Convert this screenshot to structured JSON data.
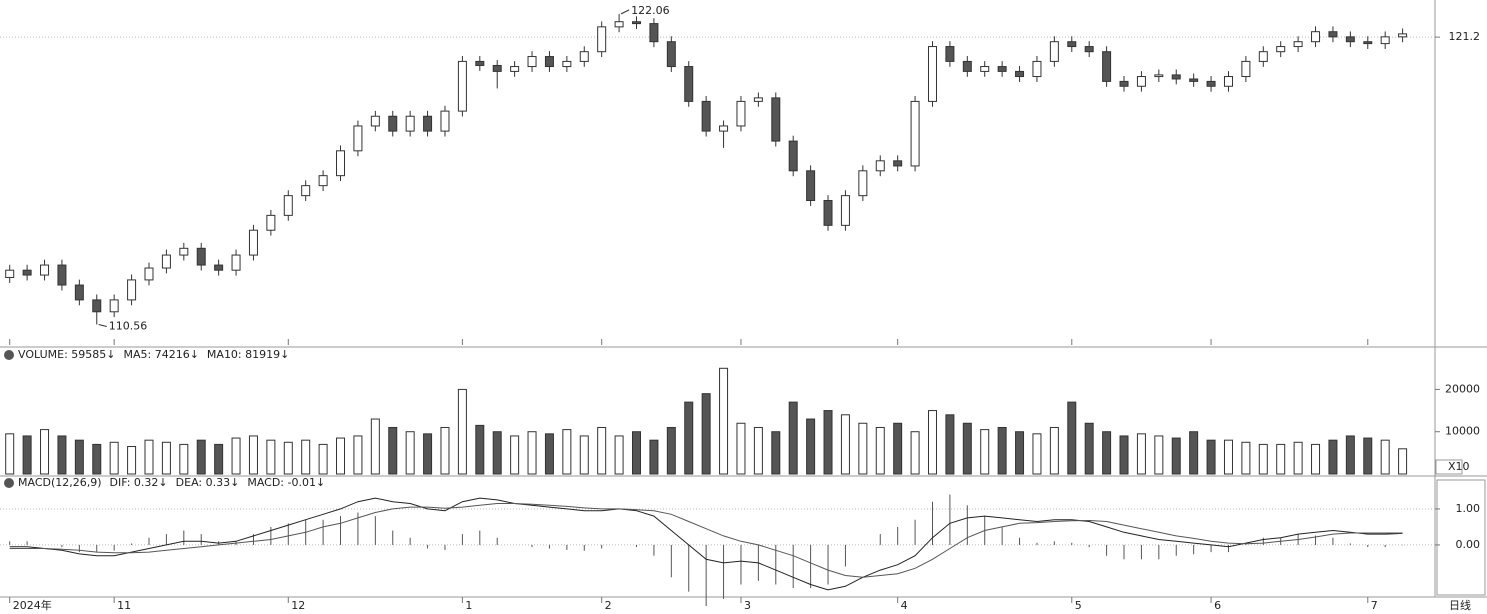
{
  "chart_data": [
    {
      "type": "candlestick",
      "xlim": [
        -0.5,
        81
      ],
      "ylim": [
        109.8,
        122.5
      ],
      "yticks": [
        121.2
      ],
      "grid": true,
      "xticks": [
        {
          "value": 0,
          "label": "2024年"
        },
        {
          "value": 6,
          "label": "11"
        },
        {
          "value": 16,
          "label": "12"
        },
        {
          "value": 26,
          "label": "1"
        },
        {
          "value": 34,
          "label": "2"
        },
        {
          "value": 42,
          "label": "3"
        },
        {
          "value": 51,
          "label": "4"
        },
        {
          "value": 61,
          "label": "5"
        },
        {
          "value": 69,
          "label": "6"
        },
        {
          "value": 78,
          "label": "7"
        }
      ],
      "period": "日线",
      "up_color": "#ffffff",
      "down_color": "#555555",
      "open": [
        112.3,
        112.57,
        112.39,
        112.76,
        112.02,
        111.47,
        111.03,
        111.47,
        112.21,
        112.65,
        113.13,
        113.38,
        112.76,
        112.57,
        113.13,
        114.05,
        114.6,
        115.33,
        115.7,
        116.07,
        116.99,
        117.91,
        118.27,
        117.72,
        118.27,
        117.72,
        118.46,
        120.3,
        120.15,
        119.93,
        120.11,
        120.48,
        120.11,
        120.3,
        120.66,
        121.58,
        121.77,
        121.7,
        121.03,
        120.11,
        118.82,
        117.72,
        117.91,
        118.82,
        118.95,
        117.35,
        116.25,
        115.15,
        114.23,
        115.33,
        116.25,
        116.62,
        116.43,
        118.82,
        120.85,
        120.3,
        119.93,
        120.11,
        119.93,
        119.74,
        120.3,
        121.03,
        120.85,
        120.66,
        119.56,
        119.38,
        119.74,
        119.8,
        119.65,
        119.56,
        119.38,
        119.74,
        120.3,
        120.66,
        120.85,
        121.03,
        121.4,
        121.21,
        121.03,
        120.96,
        121.21
      ],
      "high": [
        112.77,
        112.77,
        112.96,
        112.96,
        112.22,
        111.67,
        111.67,
        112.41,
        112.85,
        113.33,
        113.58,
        113.58,
        112.96,
        113.33,
        114.25,
        114.8,
        115.53,
        115.9,
        116.27,
        117.19,
        118.11,
        118.47,
        118.47,
        118.47,
        118.47,
        118.66,
        120.5,
        120.5,
        120.35,
        120.31,
        120.68,
        120.68,
        120.5,
        120.86,
        121.78,
        122.06,
        121.97,
        121.9,
        121.23,
        120.31,
        119.02,
        118.11,
        119.02,
        119.15,
        119.15,
        117.55,
        116.45,
        115.35,
        115.53,
        116.45,
        116.82,
        116.82,
        119.02,
        121.05,
        121.05,
        120.5,
        120.31,
        120.31,
        120.13,
        120.5,
        121.23,
        121.23,
        121.05,
        120.86,
        119.76,
        119.94,
        120.0,
        120.0,
        119.85,
        119.76,
        119.94,
        120.5,
        120.86,
        121.05,
        121.23,
        121.6,
        121.6,
        121.41,
        121.23,
        121.41,
        121.52
      ],
      "low": [
        112.1,
        112.19,
        112.19,
        111.82,
        111.27,
        110.56,
        110.83,
        111.27,
        112.01,
        112.45,
        112.93,
        112.56,
        112.37,
        112.37,
        112.93,
        113.85,
        114.4,
        115.13,
        115.5,
        115.87,
        116.79,
        117.71,
        117.52,
        117.52,
        117.52,
        117.52,
        118.26,
        119.95,
        119.3,
        119.73,
        119.91,
        119.91,
        119.91,
        120.1,
        120.46,
        121.38,
        121.5,
        120.83,
        119.91,
        118.62,
        117.52,
        117.1,
        117.71,
        118.62,
        117.15,
        116.05,
        114.95,
        114.03,
        114.03,
        115.13,
        116.05,
        116.23,
        116.23,
        118.62,
        120.1,
        119.73,
        119.73,
        119.73,
        119.54,
        119.54,
        120.1,
        120.65,
        120.46,
        119.36,
        119.18,
        119.18,
        119.54,
        119.45,
        119.36,
        119.18,
        119.18,
        119.54,
        120.1,
        120.46,
        120.65,
        120.83,
        121.01,
        120.83,
        120.76,
        120.76,
        121.01
      ],
      "close": [
        112.57,
        112.39,
        112.76,
        112.02,
        111.47,
        111.03,
        111.47,
        112.21,
        112.65,
        113.13,
        113.38,
        112.76,
        112.57,
        113.13,
        114.05,
        114.6,
        115.33,
        115.7,
        116.07,
        116.99,
        117.91,
        118.27,
        117.72,
        118.27,
        117.72,
        118.46,
        120.3,
        120.15,
        119.93,
        120.11,
        120.48,
        120.11,
        120.3,
        120.66,
        121.58,
        121.77,
        121.7,
        121.03,
        120.11,
        118.82,
        117.72,
        117.91,
        118.82,
        118.95,
        117.35,
        116.25,
        115.15,
        114.23,
        115.33,
        116.25,
        116.62,
        116.43,
        118.82,
        120.85,
        120.3,
        119.93,
        120.11,
        119.93,
        119.74,
        120.3,
        121.03,
        120.85,
        120.66,
        119.56,
        119.38,
        119.74,
        119.8,
        119.65,
        119.56,
        119.38,
        119.74,
        120.3,
        120.66,
        120.85,
        121.03,
        121.4,
        121.21,
        121.03,
        120.96,
        121.21,
        121.32
      ]
    },
    {
      "type": "bar",
      "xlim": [
        -0.5,
        81
      ],
      "ylim": [
        0,
        29800
      ],
      "yticks": [
        10000,
        20000
      ],
      "legend": [
        "VOLUME: 59585↓",
        "MA5: 74216↓",
        "MA10: 81919↓"
      ],
      "unit_label": "X10",
      "values": [
        9500,
        9000,
        10500,
        9000,
        8000,
        7000,
        7500,
        6500,
        8000,
        7500,
        7000,
        8000,
        7000,
        8500,
        9000,
        8000,
        7500,
        8000,
        7000,
        8500,
        9000,
        13000,
        11000,
        10000,
        9500,
        11000,
        20000,
        11500,
        10000,
        9000,
        10000,
        9500,
        10500,
        9000,
        11000,
        9000,
        10000,
        8000,
        11000,
        17000,
        19000,
        25000,
        12000,
        11000,
        10000,
        17000,
        13000,
        15000,
        14000,
        12000,
        11000,
        12000,
        10000,
        15000,
        14000,
        12000,
        10500,
        11000,
        10000,
        9500,
        11000,
        17000,
        12000,
        10000,
        9000,
        9500,
        9000,
        8500,
        10000,
        8000,
        8000,
        7500,
        7000,
        7000,
        7500,
        7000,
        8000,
        9000,
        8500,
        8000,
        5958.5
      ]
    },
    {
      "type": "macd",
      "xlim": [
        -0.5,
        81
      ],
      "ylim": [
        -1.42,
        1.86
      ],
      "yticks": [
        {
          "value": 0,
          "label": "0.00"
        },
        {
          "value": 1,
          "label": "1.00"
        }
      ],
      "grid": true,
      "legend": [
        "MACD(12,26,9)",
        "DIF: 0.32↓",
        "DEA: 0.33↓",
        "MACD: -0.01↓"
      ],
      "series": [
        {
          "color": "#222222",
          "values": [
            -0.05,
            -0.05,
            -0.1,
            -0.15,
            -0.25,
            -0.3,
            -0.3,
            -0.2,
            -0.1,
            0.0,
            0.1,
            0.1,
            0.05,
            0.1,
            0.25,
            0.4,
            0.55,
            0.7,
            0.85,
            1.0,
            1.2,
            1.3,
            1.2,
            1.15,
            1.0,
            0.95,
            1.2,
            1.3,
            1.25,
            1.15,
            1.1,
            1.05,
            1.0,
            0.95,
            0.95,
            1.0,
            0.95,
            0.8,
            0.4,
            0.0,
            -0.4,
            -0.5,
            -0.45,
            -0.5,
            -0.7,
            -0.9,
            -1.1,
            -1.25,
            -1.15,
            -0.9,
            -0.7,
            -0.55,
            -0.3,
            0.2,
            0.6,
            0.75,
            0.8,
            0.75,
            0.7,
            0.65,
            0.7,
            0.7,
            0.65,
            0.5,
            0.35,
            0.25,
            0.15,
            0.1,
            0.05,
            0.0,
            -0.05,
            0.05,
            0.15,
            0.2,
            0.3,
            0.35,
            0.4,
            0.35,
            0.3,
            0.3,
            0.32
          ]
        },
        {
          "color": "#555555",
          "values": [
            -0.1,
            -0.1,
            -0.1,
            -0.12,
            -0.15,
            -0.2,
            -0.22,
            -0.22,
            -0.2,
            -0.15,
            -0.1,
            -0.05,
            0.0,
            0.05,
            0.1,
            0.15,
            0.25,
            0.35,
            0.5,
            0.6,
            0.75,
            0.9,
            1.0,
            1.05,
            1.05,
            1.02,
            1.05,
            1.1,
            1.15,
            1.15,
            1.13,
            1.1,
            1.07,
            1.03,
            1.0,
            1.0,
            0.98,
            0.95,
            0.85,
            0.65,
            0.45,
            0.25,
            0.1,
            0.0,
            -0.15,
            -0.3,
            -0.5,
            -0.7,
            -0.85,
            -0.9,
            -0.85,
            -0.8,
            -0.65,
            -0.4,
            -0.1,
            0.2,
            0.4,
            0.5,
            0.6,
            0.62,
            0.65,
            0.67,
            0.68,
            0.65,
            0.55,
            0.45,
            0.35,
            0.25,
            0.18,
            0.1,
            0.05,
            0.03,
            0.05,
            0.1,
            0.15,
            0.22,
            0.3,
            0.33,
            0.33,
            0.33,
            0.33
          ]
        }
      ],
      "histogram": [
        0.1,
        0.1,
        0.0,
        -0.06,
        -0.2,
        -0.2,
        -0.16,
        0.04,
        0.2,
        0.3,
        0.4,
        0.3,
        0.1,
        0.1,
        0.3,
        0.5,
        0.6,
        0.7,
        0.7,
        0.8,
        0.9,
        0.8,
        0.4,
        0.2,
        -0.1,
        -0.14,
        0.3,
        0.4,
        0.2,
        0.0,
        -0.06,
        -0.1,
        -0.14,
        -0.16,
        -0.1,
        0.0,
        -0.06,
        -0.3,
        -0.9,
        -1.3,
        -1.7,
        -1.5,
        -1.1,
        -1.0,
        -1.1,
        -1.2,
        -1.2,
        -1.1,
        -0.6,
        0.0,
        0.3,
        0.5,
        0.7,
        1.2,
        1.4,
        1.1,
        0.8,
        0.5,
        0.2,
        0.06,
        0.1,
        0.06,
        -0.06,
        -0.3,
        -0.4,
        -0.4,
        -0.4,
        -0.3,
        -0.26,
        -0.2,
        -0.2,
        0.04,
        0.2,
        0.2,
        0.3,
        0.26,
        0.2,
        0.04,
        -0.06,
        -0.06,
        -0.01
      ]
    }
  ]
}
